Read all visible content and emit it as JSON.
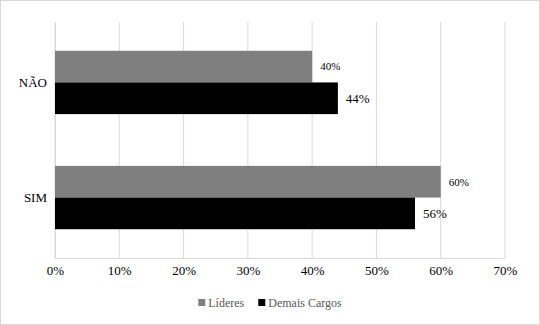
{
  "chart_data": {
    "type": "bar",
    "orientation": "horizontal",
    "categories": [
      "NÃO",
      "SIM"
    ],
    "series": [
      {
        "name": "Líderes",
        "color": "#7f7f7f",
        "values": [
          40,
          60
        ],
        "value_labels": [
          "40%",
          "60%"
        ]
      },
      {
        "name": "Demais Cargos",
        "color": "#000000",
        "values": [
          44,
          56
        ],
        "value_labels": [
          "44%",
          "56%"
        ]
      }
    ],
    "xlim": [
      0,
      70
    ],
    "xticks": [
      {
        "value": 0,
        "label": "0%"
      },
      {
        "value": 10,
        "label": "10%"
      },
      {
        "value": 20,
        "label": "20%"
      },
      {
        "value": 30,
        "label": "30%"
      },
      {
        "value": 40,
        "label": "40%"
      },
      {
        "value": 50,
        "label": "50%"
      },
      {
        "value": 60,
        "label": "60%"
      },
      {
        "value": 70,
        "label": "70%"
      }
    ],
    "grid": true,
    "data_labels": true,
    "legend": "bottom"
  }
}
